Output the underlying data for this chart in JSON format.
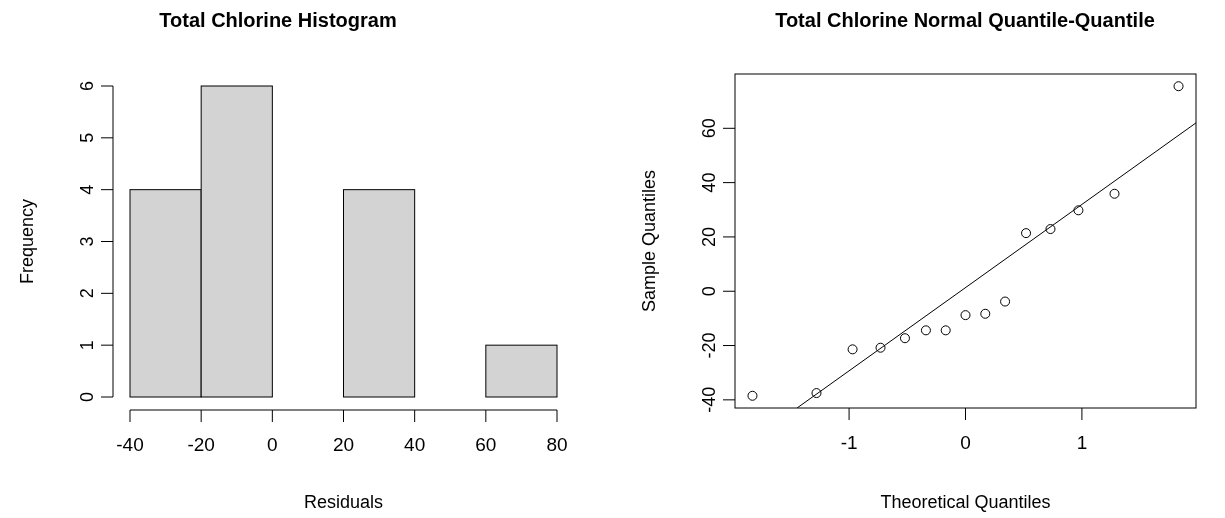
{
  "chart_data": [
    {
      "type": "histogram",
      "title": "Total Chlorine Histogram",
      "xlabel": "Residuals",
      "ylabel": "Frequency",
      "bins": [
        -40,
        -20,
        0,
        20,
        40,
        60,
        80
      ],
      "values": [
        4,
        6,
        0,
        4,
        0,
        1
      ],
      "color": "#d3d3d3",
      "xlim": [
        -40,
        80
      ],
      "ylim": [
        0,
        6
      ],
      "xticks": [
        -40,
        -20,
        0,
        20,
        40,
        60,
        80
      ],
      "yticks": [
        0,
        1,
        2,
        3,
        4,
        5,
        6
      ]
    },
    {
      "type": "scatter",
      "title": "Total Chlorine Normal Quantile-Quantile",
      "xlabel": "Theoretical Quantiles",
      "ylabel": "Sample Quantiles",
      "xlim": [
        -1.98,
        1.98
      ],
      "ylim": [
        -43,
        80
      ],
      "xticks": [
        -1,
        0,
        1
      ],
      "yticks": [
        -40,
        -20,
        0,
        20,
        40,
        60
      ],
      "series": [
        {
          "type": "scatter",
          "marker": "circle",
          "color": "#000000",
          "x": [
            -1.83,
            -1.28,
            -0.97,
            -0.73,
            -0.52,
            -0.34,
            -0.17,
            0,
            0.17,
            0.34,
            0.52,
            0.73,
            0.97,
            1.28,
            1.83
          ],
          "values": [
            -38.5,
            -37.5,
            -21.4,
            -20.8,
            -17.3,
            -14.4,
            -14.4,
            -8.8,
            -8.3,
            -3.8,
            21.4,
            22.9,
            29.8,
            35.9,
            75.5
          ]
        },
        {
          "type": "line",
          "marker": "none",
          "color": "#000000",
          "x": [
            -1.447,
            1.98
          ],
          "values": [
            -43,
            62
          ]
        }
      ]
    }
  ]
}
